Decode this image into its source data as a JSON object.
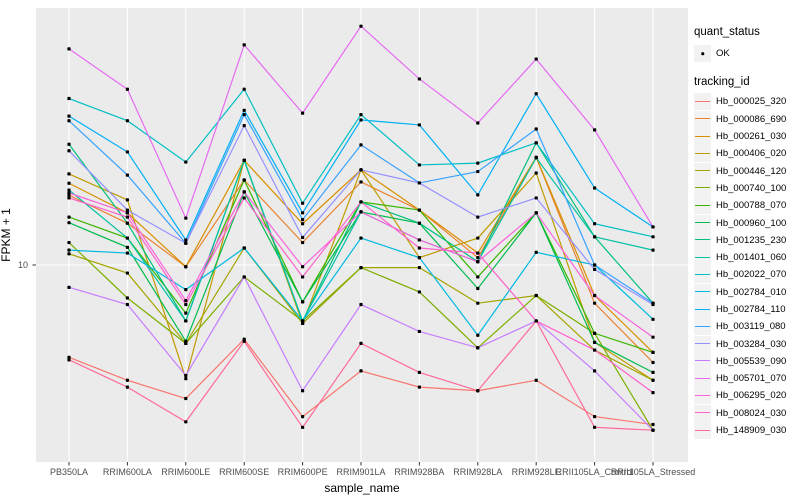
{
  "axes": {
    "y_title": "FPKM + 1",
    "x_title": "sample_name",
    "y_tick_label": "10"
  },
  "legend": {
    "quant_status_title": "quant_status",
    "quant_status_items": [
      {
        "label": "OK",
        "marker": "black-point"
      }
    ],
    "tracking_title": "tracking_id"
  },
  "style": {
    "panel_bg": "#EBEBEB",
    "grid_color": "#FFFFFF",
    "tick_color": "#333333",
    "tick_label_color": "#4D4D4D",
    "point_color": "#000000",
    "legend_key_bg": "#F2F2F2"
  },
  "chart_data": {
    "type": "line",
    "title": "",
    "xlabel": "sample_name",
    "ylabel": "FPKM + 1",
    "yscale": "log10",
    "ybreaks": [
      10
    ],
    "ylim": [
      1,
      200
    ],
    "grid": "vertical-major-plus-ybreak",
    "legend_position": "right",
    "point_marker": "small-black-square",
    "categories": [
      "PB350LA",
      "RRIM600LA",
      "RRIM600LE",
      "RRIM600SE",
      "RRIM600PE",
      "RRIM901LA",
      "RRIM928BA",
      "RRIM928LA",
      "RRIM928LE",
      "RRII105LA_Control",
      "RRII105LA_Stressed"
    ],
    "series": [
      {
        "name": "Hb_000025_320",
        "color": "#F8766D",
        "values": [
          3.4,
          2.6,
          2.1,
          4.2,
          1.7,
          2.9,
          2.4,
          2.3,
          2.6,
          1.7,
          1.55
        ]
      },
      {
        "name": "Hb_000086_690",
        "color": "#EA8331",
        "values": [
          22.6,
          16.3,
          9.8,
          27.0,
          13.0,
          26.4,
          19.0,
          10.9,
          35.2,
          6.4,
          3.2
        ]
      },
      {
        "name": "Hb_000261_030",
        "color": "#D89000",
        "values": [
          26.0,
          18.4,
          9.8,
          34.0,
          16.2,
          30.4,
          19.0,
          11.5,
          35.2,
          7.0,
          3.6
        ]
      },
      {
        "name": "Hb_000406_020",
        "color": "#C09B00",
        "values": [
          29.0,
          21.4,
          2.65,
          34.0,
          5.05,
          30.4,
          10.9,
          13.7,
          29.3,
          4.05,
          2.6
        ]
      },
      {
        "name": "Hb_000446_120",
        "color": "#A3A500",
        "values": [
          11.4,
          9.1,
          4.0,
          12.2,
          5.05,
          9.7,
          9.7,
          6.4,
          7.0,
          3.7,
          2.6
        ]
      },
      {
        "name": "Hb_000740_100",
        "color": "#7CAE00",
        "values": [
          13.0,
          6.8,
          4.0,
          8.7,
          5.2,
          9.7,
          7.3,
          3.8,
          7.0,
          4.5,
          1.45
        ]
      },
      {
        "name": "Hb_000788_070",
        "color": "#39B600",
        "values": [
          17.5,
          13.7,
          5.7,
          27.0,
          6.5,
          20.9,
          19.0,
          8.7,
          18.4,
          4.5,
          3.6
        ]
      },
      {
        "name": "Hb_000960_100",
        "color": "#00BB4E",
        "values": [
          16.4,
          12.3,
          4.1,
          23.5,
          6.5,
          18.6,
          16.3,
          7.6,
          18.4,
          4.05,
          2.85
        ]
      },
      {
        "name": "Hb_001235_230",
        "color": "#00BF7D",
        "values": [
          41.0,
          16.3,
          5.2,
          34.0,
          5.2,
          20.9,
          16.3,
          10.4,
          41.7,
          13.9,
          6.4
        ]
      },
      {
        "name": "Hb_001401_060",
        "color": "#00C1A3",
        "values": [
          24.0,
          13.7,
          5.2,
          34.0,
          5.2,
          18.6,
          13.4,
          10.4,
          35.0,
          13.9,
          11.9
        ]
      },
      {
        "name": "Hb_002022_070",
        "color": "#00BFC4",
        "values": [
          70.0,
          54.0,
          33.3,
          78.0,
          20.6,
          58.0,
          32.2,
          32.9,
          41.7,
          16.2,
          13.9
        ]
      },
      {
        "name": "Hb_002784_010",
        "color": "#00BAE0",
        "values": [
          11.9,
          11.5,
          7.5,
          12.2,
          5.2,
          13.7,
          10.9,
          4.4,
          11.6,
          10.0,
          5.3
        ]
      },
      {
        "name": "Hb_002784_110",
        "color": "#00B0F6",
        "values": [
          57.0,
          37.5,
          13.4,
          61.0,
          18.4,
          54.5,
          51.4,
          22.7,
          74.0,
          24.6,
          15.6
        ]
      },
      {
        "name": "Hb_003119_080",
        "color": "#35A2FF",
        "values": [
          54.0,
          28.6,
          12.9,
          58.0,
          17.0,
          40.7,
          26.1,
          29.8,
          49.0,
          10.0,
          6.4
        ]
      },
      {
        "name": "Hb_003284_030",
        "color": "#9590FF",
        "values": [
          38.0,
          19.0,
          12.9,
          51.0,
          13.8,
          30.4,
          26.1,
          17.5,
          21.9,
          9.5,
          6.3
        ]
      },
      {
        "name": "Hb_005539_090",
        "color": "#C77CFF",
        "values": [
          7.7,
          6.3,
          2.75,
          8.7,
          2.3,
          6.3,
          4.6,
          3.8,
          5.2,
          2.9,
          1.45
        ]
      },
      {
        "name": "Hb_005701_070",
        "color": "#E76BF3",
        "values": [
          125,
          78,
          17.3,
          131,
          59,
          163,
          88,
          52.6,
          111,
          48.5,
          15.6
        ]
      },
      {
        "name": "Hb_006295_020",
        "color": "#FA62DB",
        "values": [
          23.2,
          18.4,
          6.6,
          23.5,
          9.8,
          18.6,
          13.4,
          10.4,
          18.4,
          7.0,
          4.3
        ]
      },
      {
        "name": "Hb_008024_030",
        "color": "#FF61CC",
        "values": [
          21.9,
          17.5,
          6.3,
          21.9,
          8.7,
          20.9,
          12.2,
          11.5,
          5.2,
          3.7,
          2.25
        ]
      },
      {
        "name": "Hb_148909_030",
        "color": "#FF6A98",
        "values": [
          3.3,
          2.4,
          1.6,
          4.1,
          1.5,
          4.0,
          2.85,
          2.3,
          5.2,
          1.5,
          1.45
        ]
      }
    ]
  }
}
